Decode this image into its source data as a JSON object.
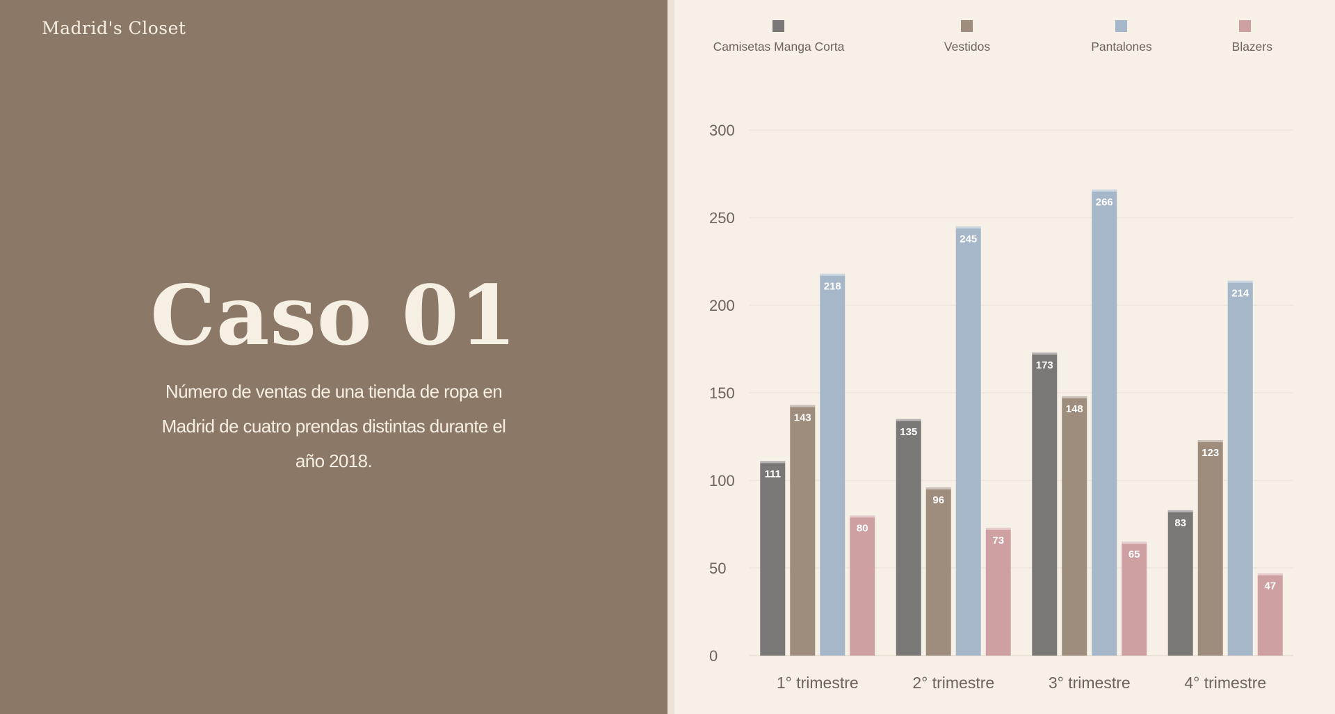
{
  "brand": "Madrid's Closet",
  "case_title": "Caso 01",
  "description": "Número de ventas de una tienda de ropa en Madrid de cuatro prendas distintas durante el año 2018.",
  "colors": {
    "left_panel": "#8b7866",
    "right_panel": "#f6f0e6",
    "text_light": "#f6efe3"
  },
  "chart_data": {
    "type": "bar",
    "categories": [
      "1° trimestre",
      "2° trimestre",
      "3° trimestre",
      "4° trimestre"
    ],
    "series": [
      {
        "name": "Camisetas Manga Corta",
        "color": "#7a7877",
        "values": [
          111,
          135,
          173,
          83
        ]
      },
      {
        "name": "Vestidos",
        "color": "#9e8c7c",
        "values": [
          143,
          96,
          148,
          123
        ]
      },
      {
        "name": "Pantalones",
        "color": "#a5b7c8",
        "values": [
          218,
          245,
          266,
          214
        ]
      },
      {
        "name": "Blazers",
        "color": "#cfa0a2",
        "values": [
          80,
          73,
          65,
          47
        ]
      }
    ],
    "y_ticks": [
      0,
      50,
      100,
      150,
      200,
      250,
      300
    ],
    "ylim": [
      0,
      300
    ],
    "grid": true,
    "legend_position": "top",
    "data_labels": true
  }
}
